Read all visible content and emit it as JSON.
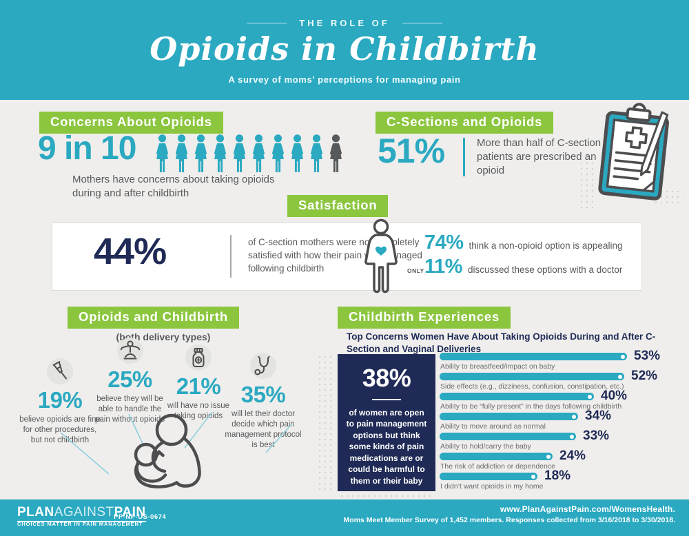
{
  "header": {
    "eyebrow": "THE ROLE OF",
    "title": "Opioids in Childbirth",
    "subtitle": "A survey of moms' perceptions for managing pain"
  },
  "concerns": {
    "heading": "Concerns About Opioids",
    "stat": "9 in 10",
    "caption": "Mothers have concerns about taking opioids during and after childbirth",
    "pictogram": {
      "icon": "woman-icon",
      "total": 10,
      "highlighted": 9
    }
  },
  "csections": {
    "heading": "C-Sections and Opioids",
    "stat": "51%",
    "caption": "More than half of C-section patients are prescribed an opioid",
    "icon": "clipboard-pencil-icon"
  },
  "satisfaction": {
    "heading": "Satisfaction",
    "stat": "44%",
    "caption": "of C-section mothers were not completely satisfied with how their pain was managed following childbirth",
    "icon": "pregnant-woman-icon",
    "appealing": {
      "stat": "74%",
      "text": "think a non-opioid option is appealing"
    },
    "discussed": {
      "prefix": "ONLY",
      "stat": "11%",
      "text": "discussed these options with a doctor"
    }
  },
  "opioids_childbirth": {
    "heading": "Opioids and Childbirth",
    "subheading": "(both delivery types)",
    "stats": [
      {
        "icon": "crutch-icon",
        "value": "19%",
        "text": "believe opioids are fine for other procedures, but not childbirth"
      },
      {
        "icon": "person-arms-out-icon",
        "value": "25%",
        "text": "believe they will be able to handle the pain without opioids"
      },
      {
        "icon": "pill-bottle-icon",
        "value": "21%",
        "text": "will have no issue taking opioids"
      },
      {
        "icon": "stethoscope-icon",
        "value": "35%",
        "text": "will let their doctor decide which pain management protocol is best"
      }
    ]
  },
  "experiences": {
    "heading": "Childbirth Experiences",
    "subtitle": "Top Concerns Women Have About Taking Opioids During and After C-Section and Vaginal Deliveries",
    "callout": {
      "stat": "38%",
      "text": "of women are open to pain management options but think some kinds of pain medications are or could be harmful to them or their baby"
    }
  },
  "chart_data": {
    "type": "bar",
    "orientation": "horizontal",
    "title": "Top Concerns Women Have About Taking Opioids During and After C-Section and Vaginal Deliveries",
    "categories": [
      "Ability to breastfeed/impact on baby",
      "Side effects (e.g., dizziness, confusion, constipation, etc.)",
      "Ability to be “fully present” in the days following childbirth",
      "Ability to move around as normal",
      "Ability to hold/carry the baby",
      "The risk of addiction or dependence",
      "I didn’t want opioids in my home"
    ],
    "values": [
      53,
      52,
      40,
      34,
      33,
      24,
      18
    ],
    "value_labels": [
      "53%",
      "52%",
      "40%",
      "34%",
      "33%",
      "24%",
      "18%"
    ],
    "unit": "%",
    "xlim": [
      0,
      53
    ],
    "grid": false,
    "legend": false,
    "bar_color": "#2aa9c1",
    "value_color": "#1f2a56"
  },
  "footer": {
    "logo": {
      "plan": "PLAN",
      "against": "AGAINST",
      "pain": "PAIN",
      "tagline": "CHOICES MATTER IN PAIN MANAGEMENT"
    },
    "code": "PP-NP-US-0674",
    "url": "www.PlanAgainstPain.com/WomensHealth.",
    "note": "Moms Meet Member Survey of 1,452 members. Responses collected from 3/16/2018 to 3/30/2018."
  },
  "colors": {
    "teal": "#2aa9c1",
    "green": "#8cc63f",
    "navy": "#1f2a56",
    "text_gray": "#58595b",
    "background": "#efeeec"
  }
}
